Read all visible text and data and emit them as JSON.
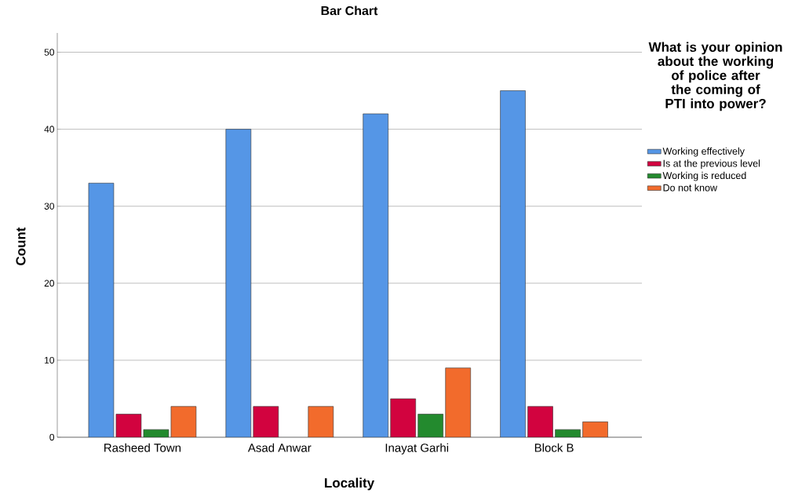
{
  "chart_data": {
    "type": "bar",
    "title": "Bar Chart",
    "xlabel": "Locality",
    "ylabel": "Count",
    "legend_title": "What is your opinion about the working of police after the coming of PTI into power?",
    "categories": [
      "Rasheed Town",
      "Asad Anwar",
      "Inayat Garhi",
      "Block B"
    ],
    "series": [
      {
        "name": "Working effectively",
        "color": "#5596e6",
        "values": [
          33,
          40,
          42,
          45
        ]
      },
      {
        "name": "Is at the previous level",
        "color": "#d2033f",
        "values": [
          3,
          4,
          5,
          4
        ]
      },
      {
        "name": "Working is reduced",
        "color": "#238a2e",
        "values": [
          1,
          null,
          3,
          1
        ]
      },
      {
        "name": "Do not know",
        "color": "#f26b2c",
        "values": [
          4,
          4,
          9,
          2
        ]
      }
    ],
    "ylim": [
      0,
      52.5
    ],
    "yticks": [
      0,
      10,
      20,
      30,
      40,
      50
    ],
    "grid": "y",
    "legend": "right"
  }
}
